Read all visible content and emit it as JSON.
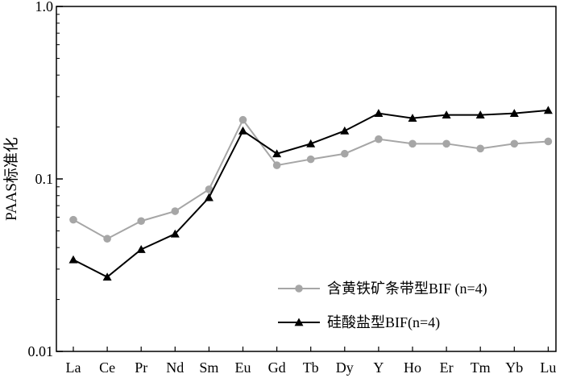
{
  "chart_data": {
    "type": "line",
    "ylabel": "PAAS标准化",
    "xlabel": "",
    "y_scale": "log",
    "ylim": [
      0.01,
      1.0
    ],
    "yticks": [
      {
        "value": 0.01,
        "label": "0.01"
      },
      {
        "value": 0.1,
        "label": "0.1"
      },
      {
        "value": 1.0,
        "label": "1.0"
      }
    ],
    "categories": [
      "La",
      "Ce",
      "Pr",
      "Nd",
      "Sm",
      "Eu",
      "Gd",
      "Tb",
      "Dy",
      "Y",
      "Ho",
      "Er",
      "Tm",
      "Yb",
      "Lu"
    ],
    "grid": false,
    "legend_position": "bottom-right",
    "series": [
      {
        "name": "含黄铁矿条带型BIF (n=4)",
        "color": "#a6a6a6",
        "marker": "circle",
        "values": [
          0.058,
          0.045,
          0.057,
          0.065,
          0.087,
          0.22,
          0.12,
          0.13,
          0.14,
          0.17,
          0.16,
          0.16,
          0.15,
          0.16,
          0.165
        ]
      },
      {
        "name": "硅酸盐型BIF(n=4)",
        "color": "#000000",
        "marker": "triangle",
        "values": [
          0.034,
          0.027,
          0.039,
          0.048,
          0.078,
          0.19,
          0.14,
          0.16,
          0.19,
          0.24,
          0.225,
          0.235,
          0.235,
          0.24,
          0.25
        ]
      }
    ]
  }
}
